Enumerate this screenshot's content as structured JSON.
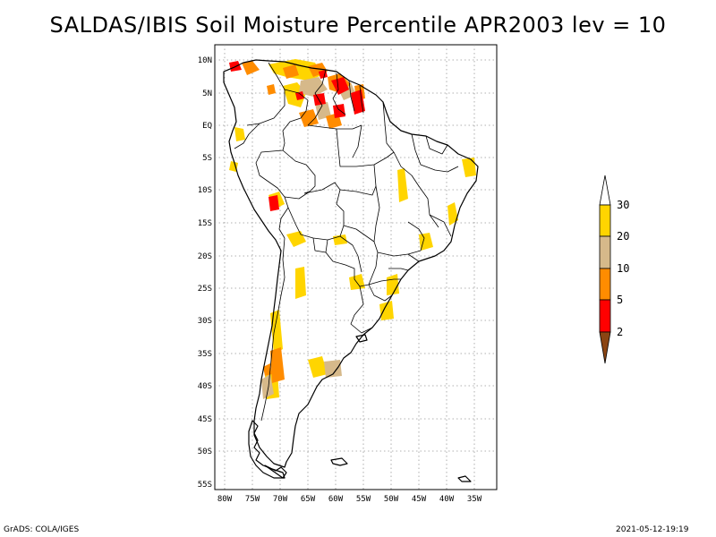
{
  "title": "SALDAS/IBIS Soil Moisture Percentile APR2003 lev = 10",
  "footer": {
    "left": "GrADS: COLA/IGES",
    "right": "2021-05-12-19:19"
  },
  "map": {
    "lat_labels": [
      "10N",
      "5N",
      "EQ",
      "5S",
      "10S",
      "15S",
      "20S",
      "25S",
      "30S",
      "35S",
      "40S",
      "45S",
      "50S",
      "55S"
    ],
    "lon_labels": [
      "80W",
      "75W",
      "70W",
      "65W",
      "60W",
      "55W",
      "50W",
      "45W",
      "40W",
      "35W"
    ],
    "lat_range": [
      -56,
      12
    ],
    "lon_range": [
      -81,
      -33
    ]
  },
  "colorbar": {
    "levels": [
      "30",
      "20",
      "10",
      "5",
      "2"
    ],
    "colors": {
      "above_30": "#ffffff",
      "20_30": "#ffd500",
      "10_20": "#d6b98a",
      "5_10": "#ff8c00",
      "2_5": "#ff0000",
      "below_2": "#8b4513"
    }
  }
}
